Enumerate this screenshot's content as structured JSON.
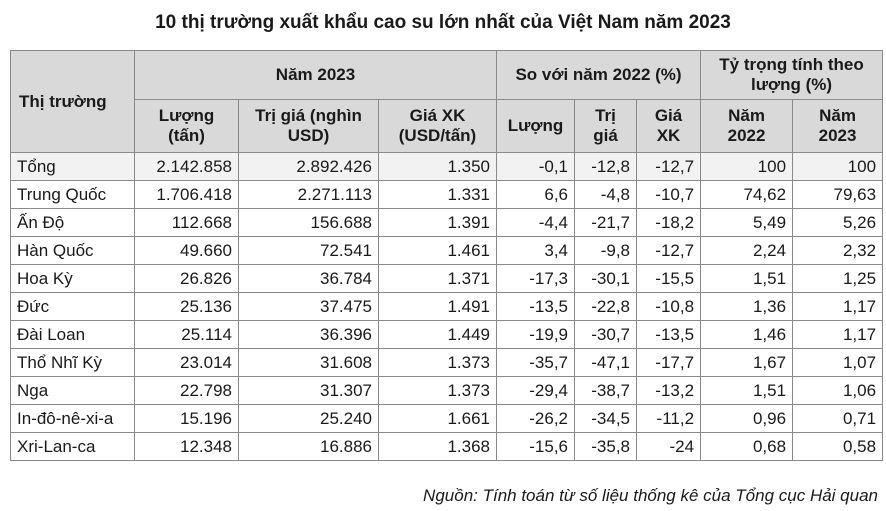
{
  "title": "10 thị trường xuất khẩu cao su lớn nhất của Việt Nam năm 2023",
  "header": {
    "market": "Thị trường",
    "group_2023": "Năm 2023",
    "group_compare": "So với năm 2022 (%)",
    "group_share": "Tỷ trọng tính theo lượng (%)",
    "volume": "Lượng (tấn)",
    "value": "Trị giá (nghìn USD)",
    "price": "Giá XK (USD/tấn)",
    "cmp_volume": "Lượng",
    "cmp_value": "Trị giá",
    "cmp_price": "Giá XK",
    "share_2022": "Năm 2022",
    "share_2023": "Năm 2023"
  },
  "rows": [
    {
      "market": "Tổng",
      "volume": "2.142.858",
      "value": "2.892.426",
      "price": "1.350",
      "cmp_volume": "-0,1",
      "cmp_value": "-12,8",
      "cmp_price": "-12,7",
      "share_2022": "100",
      "share_2023": "100"
    },
    {
      "market": "Trung Quốc",
      "volume": "1.706.418",
      "value": "2.271.113",
      "price": "1.331",
      "cmp_volume": "6,6",
      "cmp_value": "-4,8",
      "cmp_price": "-10,7",
      "share_2022": "74,62",
      "share_2023": "79,63"
    },
    {
      "market": "Ấn Độ",
      "volume": "112.668",
      "value": "156.688",
      "price": "1.391",
      "cmp_volume": "-4,4",
      "cmp_value": "-21,7",
      "cmp_price": "-18,2",
      "share_2022": "5,49",
      "share_2023": "5,26"
    },
    {
      "market": "Hàn Quốc",
      "volume": "49.660",
      "value": "72.541",
      "price": "1.461",
      "cmp_volume": "3,4",
      "cmp_value": "-9,8",
      "cmp_price": "-12,7",
      "share_2022": "2,24",
      "share_2023": "2,32"
    },
    {
      "market": "Hoa Kỳ",
      "volume": "26.826",
      "value": "36.784",
      "price": "1.371",
      "cmp_volume": "-17,3",
      "cmp_value": "-30,1",
      "cmp_price": "-15,5",
      "share_2022": "1,51",
      "share_2023": "1,25"
    },
    {
      "market": "Đức",
      "volume": "25.136",
      "value": "37.475",
      "price": "1.491",
      "cmp_volume": "-13,5",
      "cmp_value": "-22,8",
      "cmp_price": "-10,8",
      "share_2022": "1,36",
      "share_2023": "1,17"
    },
    {
      "market": "Đài Loan",
      "volume": "25.114",
      "value": "36.396",
      "price": "1.449",
      "cmp_volume": "-19,9",
      "cmp_value": "-30,7",
      "cmp_price": "-13,5",
      "share_2022": "1,46",
      "share_2023": "1,17"
    },
    {
      "market": "Thổ Nhĩ Kỳ",
      "volume": "23.014",
      "value": "31.608",
      "price": "1.373",
      "cmp_volume": "-35,7",
      "cmp_value": "-47,1",
      "cmp_price": "-17,7",
      "share_2022": "1,67",
      "share_2023": "1,07"
    },
    {
      "market": "Nga",
      "volume": "22.798",
      "value": "31.307",
      "price": "1.373",
      "cmp_volume": "-29,4",
      "cmp_value": "-38,7",
      "cmp_price": "-13,2",
      "share_2022": "1,51",
      "share_2023": "1,06"
    },
    {
      "market": "In-đô-nê-xi-a",
      "volume": "15.196",
      "value": "25.240",
      "price": "1.661",
      "cmp_volume": "-26,2",
      "cmp_value": "-34,5",
      "cmp_price": "-11,2",
      "share_2022": "0,96",
      "share_2023": "0,71"
    },
    {
      "market": "Xri-Lan-ca",
      "volume": "12.348",
      "value": "16.886",
      "price": "1.368",
      "cmp_volume": "-15,6",
      "cmp_value": "-35,8",
      "cmp_price": "-24",
      "share_2022": "0,68",
      "share_2023": "0,58"
    }
  ],
  "source": "Nguồn: Tính toán từ số liệu thống kê của Tổng cục Hải quan"
}
